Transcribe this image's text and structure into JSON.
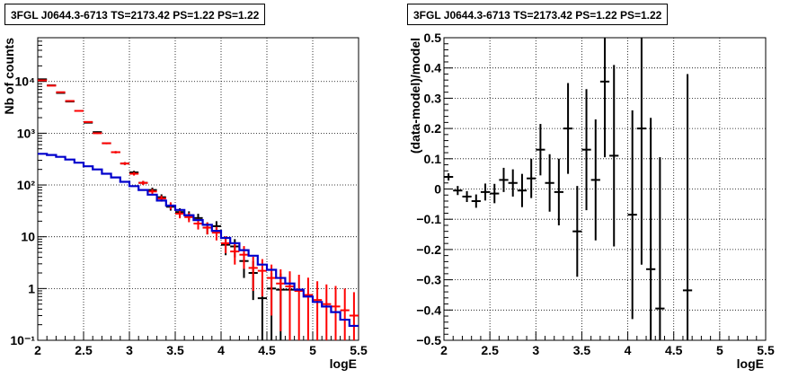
{
  "chart_data": [
    {
      "type": "line",
      "title": "3FGL J0644.3-6713 TS=2173.42 PS=1.22 PS=1.22",
      "xlabel": "logE",
      "ylabel": "Nb of counts",
      "xlim": [
        2,
        5.5
      ],
      "ylim": [
        0.1,
        70000
      ],
      "yscale": "log",
      "grid": true,
      "xticks": [
        2,
        2.5,
        3,
        3.5,
        4,
        4.5,
        5,
        5.5
      ],
      "xtick_labels": [
        "2",
        "2.5",
        "3",
        "3.5",
        "4",
        "4.5",
        "5",
        "5.5"
      ],
      "yticks": [
        0.1,
        1,
        10,
        100,
        1000,
        10000
      ],
      "ytick_labels": [
        "10⁻¹",
        "1",
        "10",
        "10²",
        "10³",
        "10⁴"
      ],
      "series": [
        {
          "color": "#000000",
          "x": [
            2.05,
            2.15,
            2.25,
            2.35,
            2.45,
            2.55,
            2.65,
            2.75,
            2.85,
            2.95,
            3.05,
            3.15,
            3.25,
            3.35,
            3.45,
            3.55,
            3.65,
            3.75,
            3.85,
            3.95,
            4.05,
            4.15,
            4.25,
            4.35,
            4.45,
            4.55,
            4.65,
            4.75
          ],
          "y": [
            11000,
            8400,
            6000,
            4100,
            2700,
            1600,
            1050,
            640,
            430,
            260,
            175,
            110,
            80,
            58,
            38,
            30,
            26,
            23,
            15,
            16,
            7,
            6.5,
            3.4,
            2.0,
            0.65,
            1.0,
            0.95,
            0.95
          ],
          "yerr": [
            100,
            90,
            75,
            65,
            50,
            40,
            32,
            25,
            20,
            16,
            13,
            10,
            9,
            8,
            6,
            5.5,
            5,
            4.8,
            3.9,
            4,
            2.6,
            2.5,
            1.8,
            1.4,
            0.8,
            1.0,
            1.0,
            1.0
          ]
        },
        {
          "color": "#ff0000",
          "x": [
            2.05,
            2.15,
            2.25,
            2.35,
            2.45,
            2.55,
            2.65,
            2.75,
            2.85,
            2.95,
            3.05,
            3.15,
            3.25,
            3.35,
            3.45,
            3.55,
            3.65,
            3.75,
            3.85,
            3.95,
            4.05,
            4.15,
            4.25,
            4.35,
            4.45,
            4.55,
            4.65,
            4.75,
            4.85,
            4.95,
            5.05,
            5.15,
            5.25,
            5.35,
            5.45
          ],
          "y": [
            10500,
            8300,
            6200,
            4200,
            2700,
            1650,
            1000,
            640,
            430,
            260,
            165,
            110,
            75,
            55,
            40,
            28,
            24,
            18,
            15,
            12,
            7.5,
            5.2,
            4.5,
            2.5,
            2.2,
            1.6,
            1.25,
            1.1,
            0.9,
            0.75,
            0.6,
            0.5,
            0.45,
            0.38,
            0.3
          ],
          "yerr": [
            100,
            90,
            79,
            65,
            52,
            41,
            32,
            25,
            21,
            16,
            13,
            10,
            8.7,
            7.4,
            6.3,
            5.3,
            4.9,
            4.2,
            3.9,
            3.5,
            2.7,
            2.3,
            2.1,
            1.6,
            1.5,
            1.3,
            1.1,
            1.05,
            0.95,
            0.87,
            0.78,
            0.7,
            0.67,
            0.62,
            0.55
          ]
        },
        {
          "color": "#0000cc",
          "step": true,
          "x": [
            2.05,
            2.15,
            2.25,
            2.35,
            2.45,
            2.55,
            2.65,
            2.75,
            2.85,
            2.95,
            3.05,
            3.15,
            3.25,
            3.35,
            3.45,
            3.55,
            3.65,
            3.75,
            3.85,
            3.95,
            4.05,
            4.15,
            4.25,
            4.35,
            4.45,
            4.55,
            4.65,
            4.75,
            4.85,
            4.95,
            5.05,
            5.15,
            5.25,
            5.35,
            5.45
          ],
          "y": [
            400,
            380,
            350,
            310,
            270,
            230,
            200,
            165,
            140,
            115,
            95,
            80,
            65,
            50,
            40,
            33,
            26,
            21,
            17,
            13,
            9.5,
            7.5,
            5.5,
            4.3,
            2.9,
            2.3,
            1.6,
            1.25,
            0.95,
            0.7,
            0.55,
            0.45,
            0.35,
            0.25,
            0.19
          ]
        }
      ]
    },
    {
      "type": "scatter",
      "title": "3FGL J0644.3-6713 TS=2173.42 PS=1.22 PS=1.22",
      "xlabel": "logE",
      "ylabel": "(data-model)/model",
      "xlim": [
        2,
        5.5
      ],
      "ylim": [
        -0.5,
        0.5
      ],
      "grid": true,
      "xticks": [
        2,
        2.5,
        3,
        3.5,
        4,
        4.5,
        5,
        5.5
      ],
      "xtick_labels": [
        "2",
        "2.5",
        "3",
        "3.5",
        "4",
        "4.5",
        "5",
        "5.5"
      ],
      "yticks": [
        -0.5,
        -0.4,
        -0.3,
        -0.2,
        -0.1,
        0,
        0.1,
        0.2,
        0.3,
        0.4,
        0.5
      ],
      "ytick_labels": [
        "−0.5",
        "−0.4",
        "−0.3",
        "−0.2",
        "−0.1",
        "0",
        "0.1",
        "0.2",
        "0.3",
        "0.4",
        "0.5"
      ],
      "series": [
        {
          "color": "#000000",
          "x": [
            2.05,
            2.15,
            2.25,
            2.35,
            2.45,
            2.55,
            2.65,
            2.75,
            2.85,
            2.95,
            3.05,
            3.15,
            3.25,
            3.35,
            3.45,
            3.55,
            3.65,
            3.75,
            3.85,
            4.05,
            4.15,
            4.25,
            4.35,
            4.65
          ],
          "y": [
            0.04,
            -0.005,
            -0.025,
            -0.04,
            -0.01,
            -0.015,
            0.03,
            0.02,
            -0.005,
            0.035,
            0.13,
            0.02,
            -0.01,
            0.2,
            -0.14,
            0.13,
            0.03,
            0.355,
            0.11,
            -0.085,
            0.2,
            -0.265,
            -0.395,
            -0.335
          ],
          "yerr": [
            0.012,
            0.015,
            0.018,
            0.022,
            0.028,
            0.032,
            0.04,
            0.045,
            0.055,
            0.065,
            0.085,
            0.095,
            0.11,
            0.15,
            0.15,
            0.2,
            0.2,
            0.25,
            0.3,
            0.345,
            0.45,
            0.5,
            0.5,
            0.715
          ]
        }
      ]
    }
  ]
}
